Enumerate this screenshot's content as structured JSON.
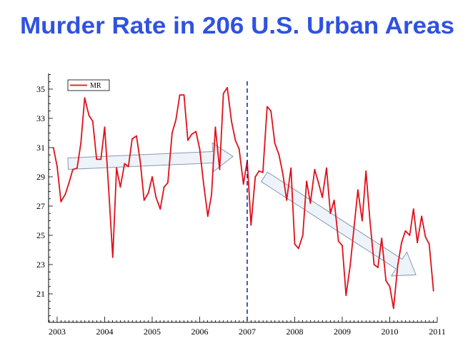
{
  "chart_data": {
    "type": "line",
    "title": "Murder Rate in 206 U.S. Urban Areas",
    "title_color": "#2f52e0",
    "xlabel": "",
    "ylabel": "",
    "xlim": [
      2002.82,
      2011
    ],
    "ylim": [
      19.05,
      36.07
    ],
    "xticks": [
      2003,
      2004,
      2005,
      2006,
      2007,
      2008,
      2009,
      2010,
      2011
    ],
    "yticks": [
      21,
      23,
      25,
      27,
      29,
      31,
      33,
      35
    ],
    "grid": false,
    "legend": {
      "position": "top-left",
      "entries": [
        "MR"
      ]
    },
    "series": [
      {
        "name": "MR",
        "color": "#e0101a",
        "x": [
          2002.92,
          2003.0,
          2003.08,
          2003.17,
          2003.25,
          2003.33,
          2003.42,
          2003.5,
          2003.58,
          2003.67,
          2003.75,
          2003.83,
          2003.92,
          2004.0,
          2004.08,
          2004.17,
          2004.25,
          2004.33,
          2004.42,
          2004.5,
          2004.58,
          2004.67,
          2004.75,
          2004.83,
          2004.92,
          2005.0,
          2005.08,
          2005.17,
          2005.25,
          2005.33,
          2005.42,
          2005.5,
          2005.58,
          2005.67,
          2005.75,
          2005.83,
          2005.92,
          2006.0,
          2006.08,
          2006.17,
          2006.25,
          2006.33,
          2006.42,
          2006.5,
          2006.58,
          2006.67,
          2006.75,
          2006.83,
          2006.92,
          2007.0,
          2007.08,
          2007.17,
          2007.25,
          2007.33,
          2007.42,
          2007.5,
          2007.58,
          2007.67,
          2007.75,
          2007.83,
          2007.92,
          2008.0,
          2008.08,
          2008.17,
          2008.25,
          2008.33,
          2008.42,
          2008.5,
          2008.58,
          2008.67,
          2008.75,
          2008.83,
          2008.92,
          2009.0,
          2009.08,
          2009.17,
          2009.25,
          2009.33,
          2009.42,
          2009.5,
          2009.58,
          2009.67,
          2009.75,
          2009.83,
          2009.92,
          2010.0,
          2010.08,
          2010.17,
          2010.25,
          2010.33,
          2010.42,
          2010.5,
          2010.58,
          2010.67,
          2010.75,
          2010.83,
          2010.92
        ],
        "values": [
          31.0,
          29.7,
          27.3,
          27.8,
          28.6,
          29.5,
          29.6,
          31.3,
          34.4,
          33.2,
          32.8,
          30.2,
          30.2,
          32.4,
          28.4,
          23.5,
          29.6,
          28.3,
          29.9,
          29.7,
          31.6,
          31.8,
          30.0,
          27.4,
          27.9,
          29.0,
          27.6,
          26.8,
          28.3,
          28.6,
          32.0,
          32.9,
          34.6,
          34.6,
          31.5,
          31.9,
          32.1,
          30.9,
          28.6,
          26.3,
          27.8,
          32.4,
          29.5,
          34.7,
          35.1,
          32.8,
          31.5,
          30.9,
          28.5,
          30.1,
          25.7,
          29.0,
          29.4,
          29.3,
          33.8,
          33.5,
          31.3,
          30.5,
          29.2,
          27.4,
          29.6,
          24.4,
          24.1,
          25.0,
          28.7,
          27.2,
          29.5,
          28.6,
          27.6,
          29.6,
          26.5,
          27.4,
          24.6,
          24.3,
          20.9,
          23.0,
          25.6,
          28.1,
          26.0,
          29.4,
          26.1,
          23.0,
          22.8,
          24.8,
          21.9,
          21.5,
          20.0,
          23.0,
          24.5,
          25.3,
          25.0,
          26.8,
          24.5,
          26.3,
          24.9,
          24.4,
          21.2
        ]
      }
    ],
    "annotations": [
      {
        "type": "vline",
        "x": 2007,
        "style": "dashed",
        "color": "#1a1aa8"
      },
      {
        "type": "arrow",
        "from": [
          2003.23,
          29.9
        ],
        "to": [
          2006.7,
          30.4
        ],
        "fill": "#eef3f9",
        "stroke": "#7f95b0"
      },
      {
        "type": "arrow",
        "from": [
          2007.36,
          29.0
        ],
        "to": [
          2010.55,
          22.3
        ],
        "fill": "#eef3f9",
        "stroke": "#7f95b0"
      }
    ]
  }
}
